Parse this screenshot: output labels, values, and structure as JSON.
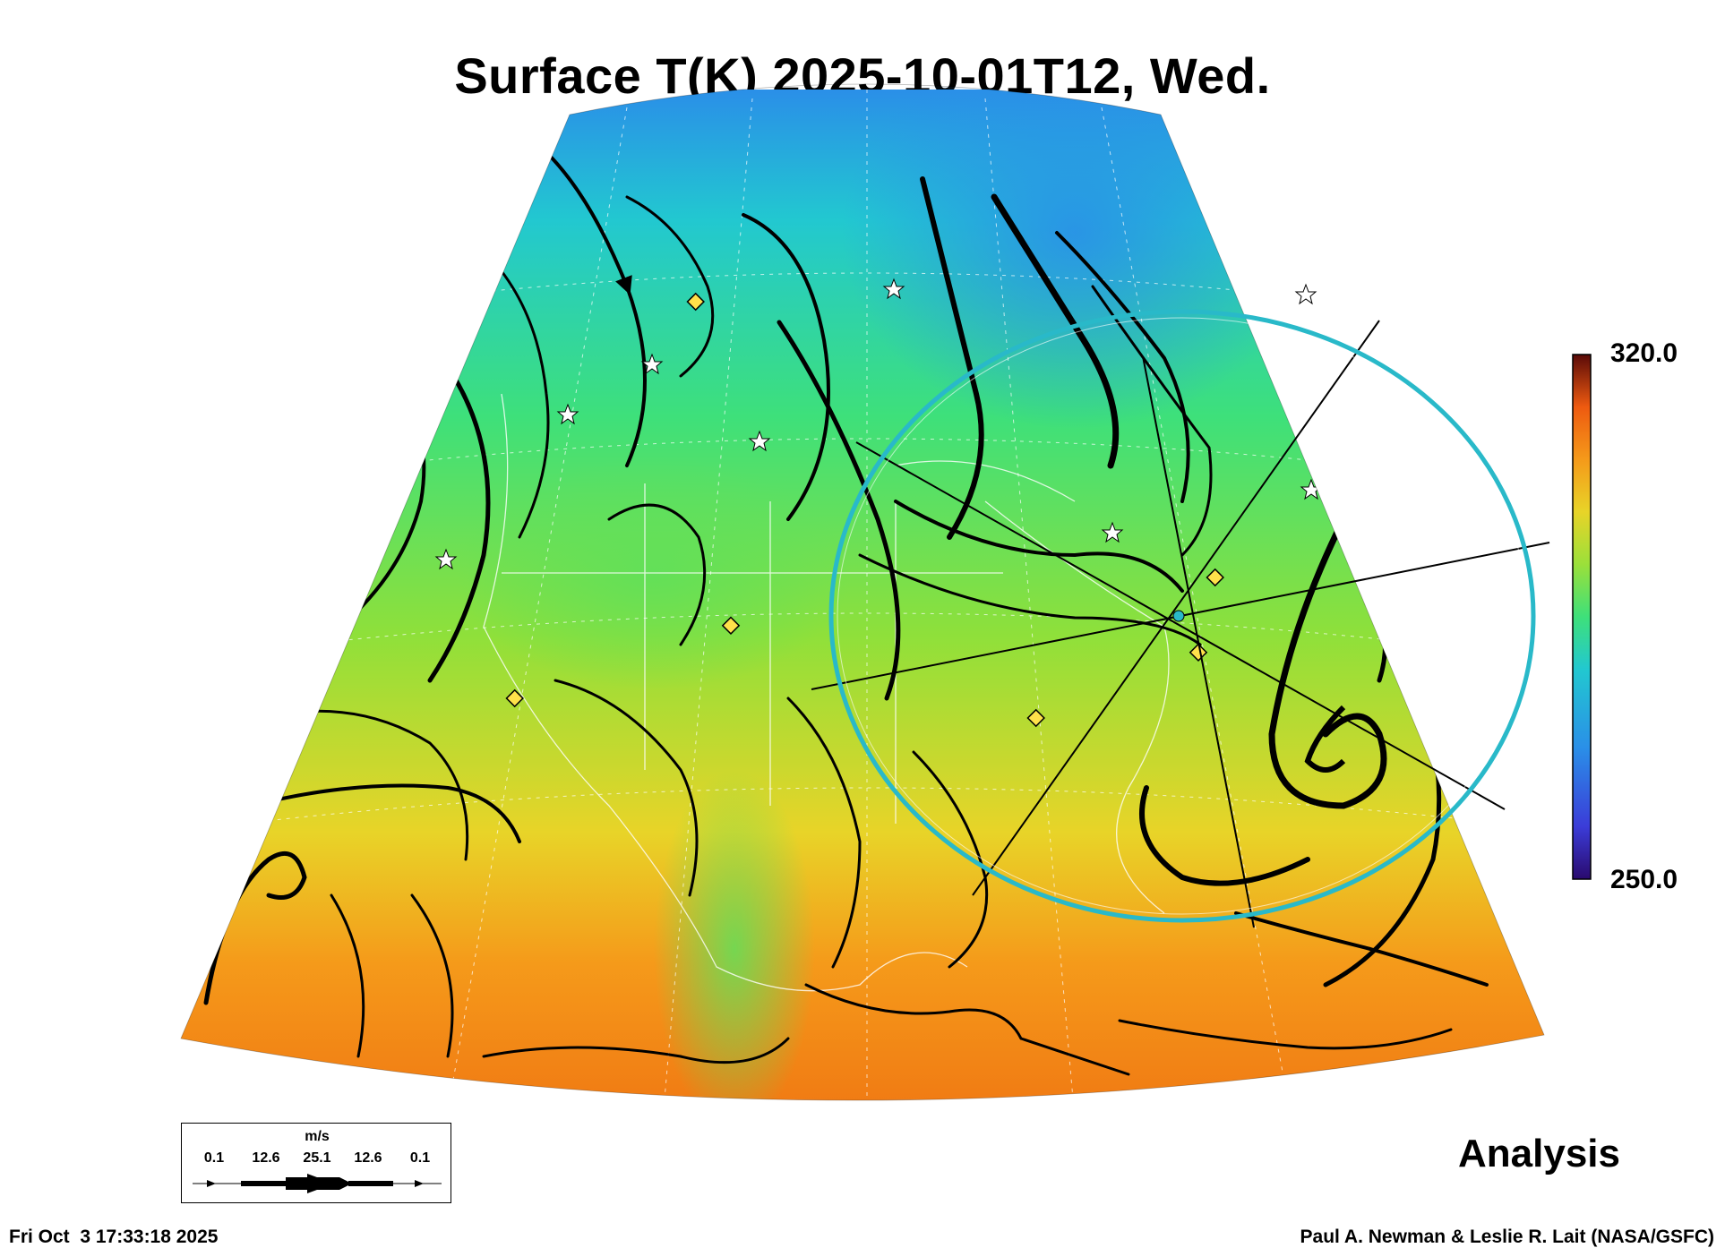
{
  "title": "Surface T(K) 2025-10-01T12, Wed.",
  "colorbar": {
    "max_label": "320.0",
    "min_label": "250.0",
    "stops": [
      "#2a0a6e",
      "#3b3cd8",
      "#2a8fe8",
      "#22c8d0",
      "#3ee07a",
      "#9be03a",
      "#e8d428",
      "#f59a1a",
      "#ee5a10",
      "#b81a0c",
      "#5a0a08"
    ]
  },
  "panel_label": "Analysis",
  "timestamp": "Fri Oct  3 17:33:18 2025",
  "credit": "Paul A. Newman & Leslie R. Lait (NASA/GSFC)",
  "wind_key": {
    "unit": "m/s",
    "labels": [
      "0.1",
      "12.6",
      "25.1",
      "12.6",
      "0.1"
    ]
  },
  "colors": {
    "ring": "#29b9c9",
    "marker_fill": "#ffe14a",
    "star_fill": "#ffffff"
  }
}
